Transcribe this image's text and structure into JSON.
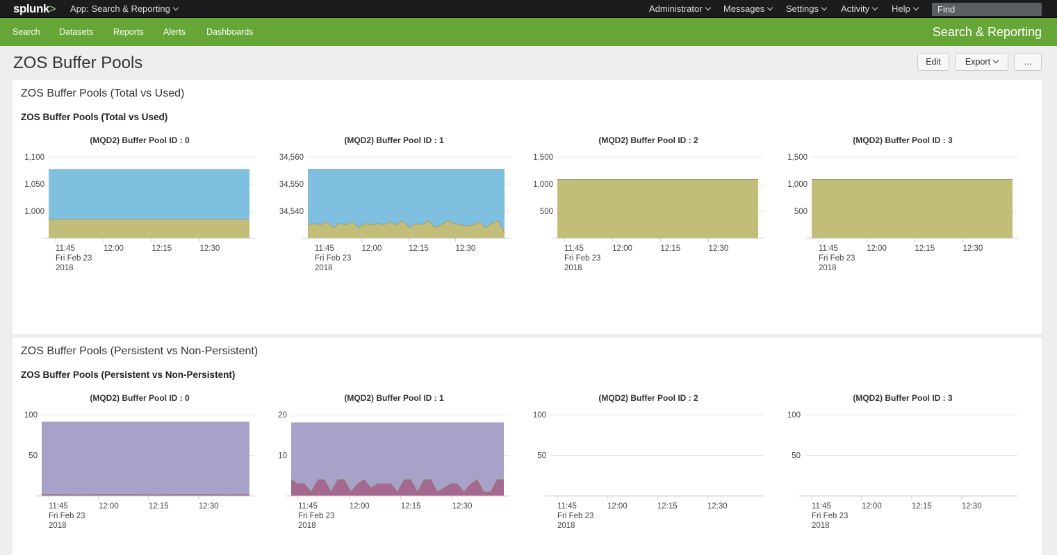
{
  "topbar": {
    "logo": "splunk",
    "logo_suffix": ">",
    "app_menu": "App: Search & Reporting",
    "items": [
      "Administrator",
      "Messages",
      "Settings",
      "Activity",
      "Help"
    ],
    "find_placeholder": "Find"
  },
  "appbar": {
    "nav": [
      "Search",
      "Datasets",
      "Reports",
      "Alerts",
      "Dashboards"
    ],
    "app_title": "Search & Reporting",
    "color": "#65a637"
  },
  "page": {
    "title": "ZOS Buffer Pools",
    "buttons": {
      "edit": "Edit",
      "export": "Export",
      "more": "..."
    }
  },
  "panels": [
    {
      "title": "ZOS Buffer Pools (Total vs Used)",
      "subtitle": "ZOS Buffer Pools (Total vs Used)"
    },
    {
      "title": "ZOS Buffer Pools (Persistent vs Non-Persistent)",
      "subtitle": "ZOS Buffer Pools (Persistent vs Non-Persistent)"
    }
  ],
  "colors": {
    "total": "#7fc0e0",
    "used": "#c2bd78",
    "persistent": "#a8a2c8",
    "nonpersistent": "#a5698f"
  },
  "chart_data": [
    {
      "type": "area",
      "panel": 0,
      "title": "(MQD2) Buffer Pool ID : 0",
      "yticks": [
        1000,
        1050,
        1100
      ],
      "ytick_labels": [
        "1,000",
        "1,050",
        "1,100"
      ],
      "ylim": [
        950,
        1100
      ],
      "x_ticks": [
        "11:45",
        "12:00",
        "12:15",
        "12:30"
      ],
      "x_date": "Fri Feb 23",
      "x_year": "2018",
      "series": [
        {
          "color": "#7fc0e0",
          "values": [
            1077,
            1077
          ]
        },
        {
          "color": "#c2bd78",
          "values": [
            985,
            985
          ]
        }
      ]
    },
    {
      "type": "area",
      "panel": 0,
      "title": "(MQD2) Buffer Pool ID : 1",
      "yticks": [
        34540,
        34550,
        34560
      ],
      "ytick_labels": [
        "34,540",
        "34,550",
        "34,560"
      ],
      "ylim": [
        34530,
        34560
      ],
      "x_ticks": [
        "11:45",
        "12:00",
        "12:15",
        "12:30"
      ],
      "x_date": "Fri Feb 23",
      "x_year": "2018",
      "series": [
        {
          "color": "#7fc0e0",
          "values": [
            34555.5,
            34555.5
          ]
        },
        {
          "color": "#c2bd78",
          "values": [
            34535,
            34535.5,
            34535,
            34536,
            34534,
            34535.5,
            34535,
            34536,
            34534,
            34535.5,
            34535,
            34535.5,
            34535,
            34536,
            34535,
            34536.5,
            34534,
            34535.5,
            34535,
            34536.5,
            34534,
            34535,
            34536.5,
            34535.5,
            34535,
            34534.5,
            34535,
            34536,
            34534,
            34535.5,
            34536.5,
            34532
          ]
        }
      ]
    },
    {
      "type": "area",
      "panel": 0,
      "title": "(MQD2) Buffer Pool ID : 2",
      "yticks": [
        500,
        1000,
        1500
      ],
      "ytick_labels": [
        "500",
        "1,000",
        "1,500"
      ],
      "ylim": [
        0,
        1500
      ],
      "x_ticks": [
        "11:45",
        "12:00",
        "12:15",
        "12:30"
      ],
      "x_date": "Fri Feb 23",
      "x_year": "2018",
      "series": [
        {
          "color": "#7fc0e0",
          "values": [
            1085,
            1085
          ]
        },
        {
          "color": "#c2bd78",
          "values": [
            1085,
            1085
          ]
        }
      ]
    },
    {
      "type": "area",
      "panel": 0,
      "title": "(MQD2) Buffer Pool ID : 3",
      "yticks": [
        500,
        1000,
        1500
      ],
      "ytick_labels": [
        "500",
        "1,000",
        "1,500"
      ],
      "ylim": [
        0,
        1500
      ],
      "x_ticks": [
        "11:45",
        "12:00",
        "12:15",
        "12:30"
      ],
      "x_date": "Fri Feb 23",
      "x_year": "2018",
      "series": [
        {
          "color": "#7fc0e0",
          "values": [
            1085,
            1085
          ]
        },
        {
          "color": "#c2bd78",
          "values": [
            1085,
            1085
          ]
        }
      ]
    },
    {
      "type": "area",
      "panel": 1,
      "title": "(MQD2) Buffer Pool ID : 0",
      "yticks": [
        50,
        100
      ],
      "ytick_labels": [
        "50",
        "100"
      ],
      "ylim": [
        0,
        100
      ],
      "x_ticks": [
        "11:45",
        "12:00",
        "12:15",
        "12:30"
      ],
      "x_date": "Fri Feb 23",
      "x_year": "2018",
      "series": [
        {
          "color": "#a8a2c8",
          "values": [
            91,
            91
          ]
        },
        {
          "color": "#a5698f",
          "values": [
            2,
            2,
            1.5,
            2,
            2,
            2,
            1.5,
            2,
            2,
            2,
            1.5,
            2
          ]
        }
      ]
    },
    {
      "type": "area",
      "panel": 1,
      "title": "(MQD2) Buffer Pool ID : 1",
      "yticks": [
        10,
        20
      ],
      "ytick_labels": [
        "10",
        "20"
      ],
      "ylim": [
        0,
        20
      ],
      "x_ticks": [
        "11:45",
        "12:00",
        "12:15",
        "12:30"
      ],
      "x_date": "Fri Feb 23",
      "x_year": "2018",
      "series": [
        {
          "color": "#a8a2c8",
          "values": [
            18,
            18
          ]
        },
        {
          "color": "#a5698f",
          "values": [
            4,
            3,
            3,
            1,
            4,
            4,
            1,
            4,
            4,
            1,
            3,
            4,
            2,
            3,
            3,
            3,
            1,
            4,
            4,
            1,
            4,
            4,
            1,
            2,
            3,
            3,
            1,
            3,
            4,
            1,
            1,
            4,
            4
          ]
        }
      ]
    },
    {
      "type": "area",
      "panel": 1,
      "title": "(MQD2) Buffer Pool ID : 2",
      "yticks": [
        50,
        100
      ],
      "ytick_labels": [
        "50",
        "100"
      ],
      "ylim": [
        0,
        100
      ],
      "x_ticks": [
        "11:45",
        "12:00",
        "12:15",
        "12:30"
      ],
      "x_date": "Fri Feb 23",
      "x_year": "2018",
      "series": [
        {
          "color": "#a8a2c8",
          "values": [
            0,
            0
          ]
        },
        {
          "color": "#a5698f",
          "values": [
            0,
            0
          ]
        }
      ]
    },
    {
      "type": "area",
      "panel": 1,
      "title": "(MQD2) Buffer Pool ID : 3",
      "yticks": [
        50,
        100
      ],
      "ytick_labels": [
        "50",
        "100"
      ],
      "ylim": [
        0,
        100
      ],
      "x_ticks": [
        "11:45",
        "12:00",
        "12:15",
        "12:30"
      ],
      "x_date": "Fri Feb 23",
      "x_year": "2018",
      "series": [
        {
          "color": "#a8a2c8",
          "values": [
            0,
            0
          ]
        },
        {
          "color": "#a5698f",
          "values": [
            0,
            0
          ]
        }
      ]
    }
  ]
}
